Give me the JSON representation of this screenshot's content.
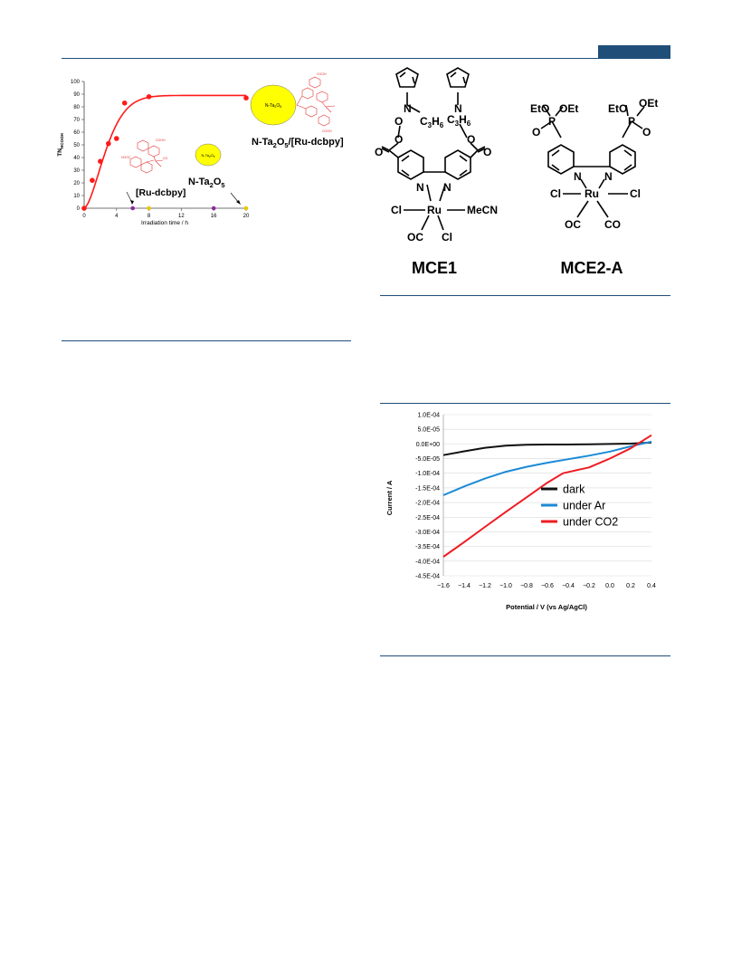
{
  "header": {
    "accent_color": "#1f4e79"
  },
  "figure1": {
    "chart_data": {
      "type": "scatter",
      "ylabel": "TN",
      "ylabel_sub": "HCOOH",
      "xlabel": "Irradiation time / h",
      "xlim": [
        0,
        20
      ],
      "ylim": [
        0,
        100
      ],
      "xticks": [
        "0",
        "4",
        "8",
        "12",
        "16",
        "20"
      ],
      "yticks": [
        "0",
        "10",
        "20",
        "30",
        "40",
        "50",
        "60",
        "70",
        "80",
        "90",
        "100"
      ],
      "series": [
        {
          "name": "N-Ta2O5/[Ru-dcbpy]",
          "color": "#ff1a1a",
          "x": [
            0,
            1,
            2,
            3,
            4,
            5,
            8,
            20
          ],
          "y": [
            0,
            22,
            37,
            51,
            55,
            83,
            88,
            87
          ]
        },
        {
          "name": "[Ru-dcbpy]",
          "color": "#8b2a9b",
          "x": [
            6,
            16
          ],
          "y": [
            0,
            0
          ]
        },
        {
          "name": "N-Ta2O5",
          "color": "#e6c800",
          "x": [
            8,
            20
          ],
          "y": [
            0,
            0
          ]
        }
      ],
      "annotations": {
        "ru_dcbpy": "[Ru-dcbpy]",
        "n_ta2o5": "N-Ta",
        "n_ta2o5_sub": "2",
        "n_ta2o5_rest": "O",
        "n_ta2o5_sub2": "5",
        "hybrid": "N-Ta",
        "hybrid_sub": "2",
        "hybrid_mid": "O",
        "hybrid_sub2": "5",
        "hybrid_rest": "/[Ru-dcbpy]",
        "bubble_label": "N-Ta",
        "bubble_sub": "2",
        "bubble_rest": "O",
        "bubble_sub2": "5",
        "cooh": "COOH",
        "hooc": "HOOC",
        "co": "CO"
      },
      "grid": false
    }
  },
  "figure2": {
    "mce1": {
      "name": "MCE1",
      "o": "O",
      "c3h6": "C",
      "c3h6_sub1": "3",
      "c3h6_h": "H",
      "c3h6_sub2": "6",
      "n": "N",
      "ru": "Ru",
      "cl": "Cl",
      "mecn": "MeCN",
      "oc": "OC"
    },
    "mce2a": {
      "name": "MCE2-A",
      "eto": "EtO",
      "oet": "OEt",
      "p": "P",
      "o": "O",
      "n": "N",
      "ru": "Ru",
      "cl": "Cl",
      "oc": "OC",
      "co": "CO"
    }
  },
  "figure3": {
    "chart_data": {
      "type": "line",
      "ylabel": "Current / A",
      "xlabel": "Potential / V (vs Ag/AgCl)",
      "xlim": [
        -1.6,
        0.4
      ],
      "ylim": [
        -0.00045,
        0.0001
      ],
      "xticks": [
        "−1.6",
        "−1.4",
        "−1.2",
        "−1.0",
        "−0.8",
        "−0.6",
        "−0.4",
        "−0.2",
        "0.0",
        "0.2",
        "0.4"
      ],
      "yticks": [
        "1.0E-04",
        "5.0E-05",
        "0.0E+00",
        "-5.0E-05",
        "-1.0E-04",
        "-1.5E-04",
        "-2.0E-04",
        "-2.5E-04",
        "-3.0E-04",
        "-3.5E-04",
        "-4.0E-04",
        "-4.5E-04"
      ],
      "legend_position": "center-right",
      "series": [
        {
          "name": "dark",
          "color": "#111111",
          "x": [
            -1.6,
            -1.4,
            -1.2,
            -1.0,
            -0.8,
            -0.6,
            -0.4,
            -0.2,
            0.0,
            0.2,
            0.4
          ],
          "y": [
            -3.8e-05,
            -2.5e-05,
            -1.3e-05,
            -6e-06,
            -3e-06,
            -2e-06,
            -2e-06,
            -1e-06,
            0.0,
            1e-06,
            5e-06
          ]
        },
        {
          "name": "under Ar",
          "color": "#1b8ad6",
          "x": [
            -1.6,
            -1.4,
            -1.2,
            -1.0,
            -0.8,
            -0.6,
            -0.4,
            -0.2,
            0.0,
            0.2,
            0.4
          ],
          "y": [
            -0.000175,
            -0.000145,
            -0.000118,
            -9.5e-05,
            -7.8e-05,
            -6.4e-05,
            -5.2e-05,
            -4e-05,
            -2.6e-05,
            -8e-06,
            8e-06
          ]
        },
        {
          "name": "under CO2",
          "color": "#ee1c24",
          "x": [
            -1.6,
            -1.4,
            -1.2,
            -1.0,
            -0.8,
            -0.6,
            -0.45,
            -0.3,
            -0.2,
            0.0,
            0.2,
            0.4
          ],
          "y": [
            -0.000385,
            -0.000335,
            -0.000283,
            -0.000232,
            -0.000182,
            -0.000132,
            -0.0001,
            -8.8e-05,
            -8e-05,
            -5e-05,
            -1.5e-05,
            3e-05
          ]
        }
      ]
    }
  }
}
